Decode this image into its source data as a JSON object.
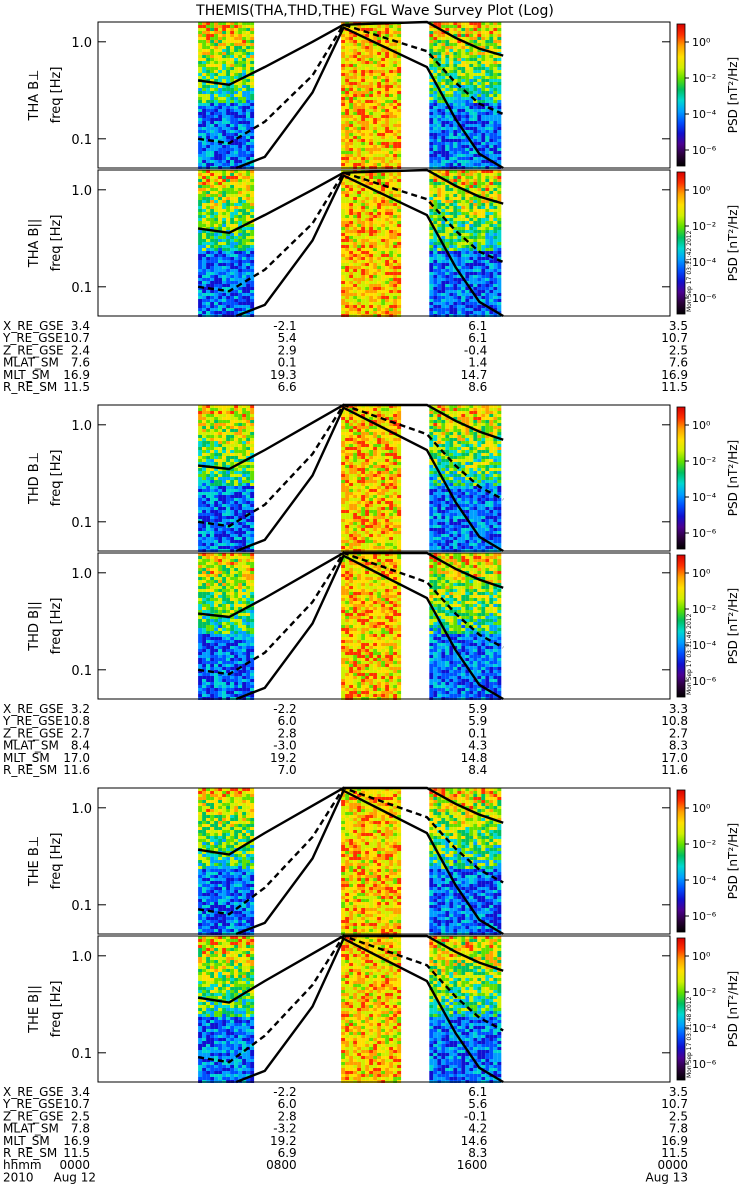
{
  "title": "THEMIS(THA,THD,THE) FGL Wave Survey Plot (Log)",
  "colorbar": {
    "label": "PSD [nT²/Hz]",
    "ticks": [
      "10⁰",
      "10⁻²",
      "10⁻⁴",
      "10⁻⁶"
    ],
    "colors": [
      "#000000",
      "#2a003a",
      "#4b0090",
      "#1010d0",
      "#0050ff",
      "#00a0ff",
      "#00d8d0",
      "#00c060",
      "#60e000",
      "#d0f000",
      "#ffe000",
      "#ffa000",
      "#ff3000",
      "#d80000"
    ],
    "stamps": [
      "Mon Sep 17 03:11:42 2012",
      "Mon Sep 17 03:11:46 2012",
      "Mon Sep 17 03:11:48 2012"
    ]
  },
  "chart_data": [
    {
      "type": "heatmap",
      "probe": "THA",
      "panels": [
        {
          "ylabel": "THA B⊥",
          "unit_label": "freq [Hz]"
        },
        {
          "ylabel": "THA B||",
          "unit_label": "freq [Hz]"
        }
      ],
      "yscale": "log",
      "ylim": [
        0.05,
        1.6
      ],
      "yticks": [
        "1.0",
        "0.1"
      ],
      "data_gap_hours": [
        [
          4.2,
          6.5
        ],
        [
          10.2,
          12.7
        ],
        [
          13.9,
          16.9
        ]
      ],
      "curves": [
        {
          "style": "solid",
          "points_h": [
            [
              4.2,
              0.4
            ],
            [
              5.5,
              0.36
            ],
            [
              7.0,
              0.55
            ],
            [
              9.0,
              1.0
            ],
            [
              10.3,
              1.5
            ],
            [
              13.8,
              1.6
            ],
            [
              15.0,
              1.1
            ],
            [
              16.0,
              0.85
            ],
            [
              17.0,
              0.72
            ]
          ]
        },
        {
          "style": "dashed",
          "points_h": [
            [
              4.2,
              0.1
            ],
            [
              5.5,
              0.09
            ],
            [
              7.0,
              0.15
            ],
            [
              9.0,
              0.45
            ],
            [
              10.3,
              1.5
            ],
            [
              13.8,
              0.8
            ],
            [
              15.0,
              0.38
            ],
            [
              16.0,
              0.23
            ],
            [
              17.0,
              0.18
            ]
          ]
        },
        {
          "style": "solid",
          "points_h": [
            [
              5.8,
              0.05
            ],
            [
              7.0,
              0.065
            ],
            [
              9.0,
              0.3
            ],
            [
              10.3,
              1.4
            ],
            [
              13.8,
              0.55
            ],
            [
              15.0,
              0.16
            ],
            [
              16.0,
              0.07
            ],
            [
              17.0,
              0.05
            ]
          ]
        }
      ],
      "orbit_rows": [
        {
          "label": "X_RE_GSE",
          "values": [
            "3.4",
            "-2.1",
            "6.1",
            "3.5"
          ]
        },
        {
          "label": "Y_RE_GSE",
          "values": [
            "10.7",
            "5.4",
            "6.1",
            "10.7"
          ]
        },
        {
          "label": "Z_RE_GSE",
          "values": [
            "2.4",
            "2.9",
            "-0.4",
            "2.5"
          ]
        },
        {
          "label": "MLAT_SM",
          "values": [
            "7.6",
            "0.1",
            "1.4",
            "7.6"
          ]
        },
        {
          "label": "MLT_SM",
          "values": [
            "16.9",
            "19.3",
            "14.7",
            "16.9"
          ]
        },
        {
          "label": "R_RE_SM",
          "values": [
            "11.5",
            "6.6",
            "8.6",
            "11.5"
          ]
        }
      ]
    },
    {
      "type": "heatmap",
      "probe": "THD",
      "panels": [
        {
          "ylabel": "THD B⊥",
          "unit_label": "freq [Hz]"
        },
        {
          "ylabel": "THD B||",
          "unit_label": "freq [Hz]"
        }
      ],
      "yscale": "log",
      "ylim": [
        0.05,
        1.6
      ],
      "yticks": [
        "1.0",
        "0.1"
      ],
      "data_gap_hours": [
        [
          4.2,
          6.5
        ],
        [
          10.2,
          12.7
        ],
        [
          13.9,
          16.9
        ]
      ],
      "curves": [
        {
          "style": "solid",
          "points_h": [
            [
              4.2,
              0.38
            ],
            [
              5.5,
              0.35
            ],
            [
              7.0,
              0.55
            ],
            [
              9.0,
              1.05
            ],
            [
              10.3,
              1.6
            ],
            [
              13.8,
              1.6
            ],
            [
              15.0,
              1.1
            ],
            [
              16.0,
              0.85
            ],
            [
              17.0,
              0.7
            ]
          ]
        },
        {
          "style": "dashed",
          "points_h": [
            [
              4.2,
              0.1
            ],
            [
              5.5,
              0.09
            ],
            [
              7.0,
              0.15
            ],
            [
              9.0,
              0.5
            ],
            [
              10.3,
              1.6
            ],
            [
              13.8,
              0.8
            ],
            [
              15.0,
              0.38
            ],
            [
              16.0,
              0.23
            ],
            [
              17.0,
              0.17
            ]
          ]
        },
        {
          "style": "solid",
          "points_h": [
            [
              5.8,
              0.05
            ],
            [
              7.0,
              0.065
            ],
            [
              9.0,
              0.3
            ],
            [
              10.3,
              1.5
            ],
            [
              13.8,
              0.55
            ],
            [
              15.0,
              0.16
            ],
            [
              16.0,
              0.07
            ],
            [
              17.0,
              0.05
            ]
          ]
        }
      ],
      "orbit_rows": [
        {
          "label": "X_RE_GSE",
          "values": [
            "3.2",
            "-2.2",
            "5.9",
            "3.3"
          ]
        },
        {
          "label": "Y_RE_GSE",
          "values": [
            "10.8",
            "6.0",
            "5.9",
            "10.8"
          ]
        },
        {
          "label": "Z_RE_GSE",
          "values": [
            "2.7",
            "2.8",
            "0.1",
            "2.7"
          ]
        },
        {
          "label": "MLAT_SM",
          "values": [
            "8.4",
            "-3.0",
            "4.3",
            "8.3"
          ]
        },
        {
          "label": "MLT_SM",
          "values": [
            "17.0",
            "19.2",
            "14.8",
            "17.0"
          ]
        },
        {
          "label": "R_RE_SM",
          "values": [
            "11.6",
            "7.0",
            "8.4",
            "11.6"
          ]
        }
      ]
    },
    {
      "type": "heatmap",
      "probe": "THE",
      "panels": [
        {
          "ylabel": "THE B⊥",
          "unit_label": "freq [Hz]"
        },
        {
          "ylabel": "THE B||",
          "unit_label": "freq [Hz]"
        }
      ],
      "yscale": "log",
      "ylim": [
        0.05,
        1.6
      ],
      "yticks": [
        "1.0",
        "0.1"
      ],
      "data_gap_hours": [
        [
          4.2,
          6.5
        ],
        [
          10.2,
          12.7
        ],
        [
          13.9,
          16.9
        ]
      ],
      "curves": [
        {
          "style": "solid",
          "points_h": [
            [
              4.2,
              0.37
            ],
            [
              5.5,
              0.33
            ],
            [
              7.0,
              0.55
            ],
            [
              9.0,
              1.05
            ],
            [
              10.3,
              1.6
            ],
            [
              13.8,
              1.6
            ],
            [
              15.0,
              1.1
            ],
            [
              16.0,
              0.85
            ],
            [
              17.0,
              0.7
            ]
          ]
        },
        {
          "style": "dashed",
          "points_h": [
            [
              4.2,
              0.09
            ],
            [
              5.5,
              0.08
            ],
            [
              7.0,
              0.15
            ],
            [
              9.0,
              0.5
            ],
            [
              10.3,
              1.6
            ],
            [
              13.8,
              0.8
            ],
            [
              15.0,
              0.38
            ],
            [
              16.0,
              0.23
            ],
            [
              17.0,
              0.17
            ]
          ]
        },
        {
          "style": "solid",
          "points_h": [
            [
              5.8,
              0.05
            ],
            [
              7.0,
              0.065
            ],
            [
              9.0,
              0.3
            ],
            [
              10.3,
              1.5
            ],
            [
              13.8,
              0.55
            ],
            [
              15.0,
              0.16
            ],
            [
              16.0,
              0.07
            ],
            [
              17.0,
              0.05
            ]
          ]
        }
      ],
      "orbit_rows": [
        {
          "label": "X_RE_GSE",
          "values": [
            "3.4",
            "-2.2",
            "6.1",
            "3.5"
          ]
        },
        {
          "label": "Y_RE_GSE",
          "values": [
            "10.7",
            "6.0",
            "5.6",
            "10.7"
          ]
        },
        {
          "label": "Z_RE_GSE",
          "values": [
            "2.5",
            "2.8",
            "-0.1",
            "2.5"
          ]
        },
        {
          "label": "MLAT_SM",
          "values": [
            "7.8",
            "-3.2",
            "4.2",
            "7.8"
          ]
        },
        {
          "label": "MLT_SM",
          "values": [
            "16.9",
            "19.2",
            "14.6",
            "16.9"
          ]
        },
        {
          "label": "R_RE_SM",
          "values": [
            "11.5",
            "6.9",
            "8.3",
            "11.5"
          ]
        },
        {
          "label": "hhmm",
          "values": [
            "0000",
            "0800",
            "1600",
            "0000"
          ]
        }
      ],
      "date_row": [
        "2010",
        "Aug 12",
        "Aug 13"
      ]
    }
  ]
}
